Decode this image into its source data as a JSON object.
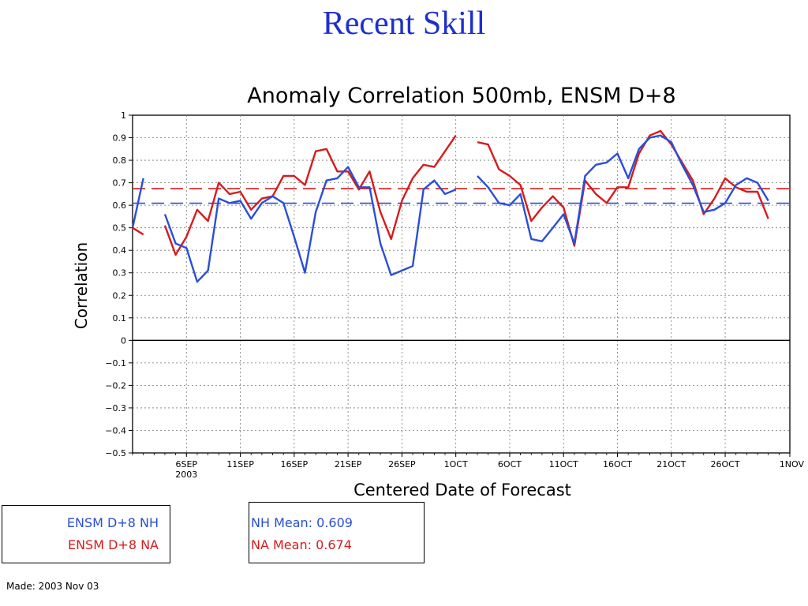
{
  "slide": {
    "title": "Recent Skill"
  },
  "footer": {
    "made": "Made: 2003 Nov 03"
  },
  "legend": {
    "series": [
      {
        "label": "ENSM D+8 NH",
        "color": "#2a4fd6"
      },
      {
        "label": "ENSM D+8 NA",
        "color": "#d61c1c"
      }
    ],
    "means": [
      {
        "label": "NH Mean: 0.609",
        "color": "#2a4fd6"
      },
      {
        "label": "NA Mean: 0.674",
        "color": "#d61c1c"
      }
    ]
  },
  "chart_data": {
    "type": "line",
    "title": "Anomaly Correlation 500mb, ENSM D+8",
    "xlabel": "Centered Date of Forecast",
    "ylabel": "Correlation",
    "x_start": "2003-09-01",
    "x_end": "2003-11-01",
    "xlim": [
      "2003-09-01",
      "2003-11-01"
    ],
    "ylim": [
      -0.5,
      1.0
    ],
    "yticks": [
      -0.5,
      -0.4,
      -0.3,
      -0.2,
      -0.1,
      0,
      0.1,
      0.2,
      0.3,
      0.4,
      0.5,
      0.6,
      0.7,
      0.8,
      0.9,
      1
    ],
    "ytick_labels": [
      "−0.5",
      "−0.4",
      "−0.3",
      "−0.2",
      "−0.1",
      "0",
      "0.1",
      "0.2",
      "0.3",
      "0.4",
      "0.5",
      "0.6",
      "0.7",
      "0.8",
      "0.9",
      "1"
    ],
    "xticks": [
      {
        "date": "2003-09-06",
        "label": "6SEP",
        "sublabel": "2003"
      },
      {
        "date": "2003-09-11",
        "label": "11SEP"
      },
      {
        "date": "2003-09-16",
        "label": "16SEP"
      },
      {
        "date": "2003-09-21",
        "label": "21SEP"
      },
      {
        "date": "2003-09-26",
        "label": "26SEP"
      },
      {
        "date": "2003-10-01",
        "label": "1OCT"
      },
      {
        "date": "2003-10-06",
        "label": "6OCT"
      },
      {
        "date": "2003-10-11",
        "label": "11OCT"
      },
      {
        "date": "2003-10-16",
        "label": "16OCT"
      },
      {
        "date": "2003-10-21",
        "label": "21OCT"
      },
      {
        "date": "2003-10-26",
        "label": "26OCT"
      },
      {
        "date": "2003-11-01",
        "label": "1NOV"
      }
    ],
    "grid": true,
    "zero_line": true,
    "series": [
      {
        "name": "ENSM D+8 NH",
        "color": "#2a4fd6",
        "mean": 0.609,
        "segments": [
          [
            [
              "2003-09-01",
              0.5
            ],
            [
              "2003-09-02",
              0.72
            ]
          ],
          [
            [
              "2003-09-04",
              0.56
            ],
            [
              "2003-09-05",
              0.43
            ],
            [
              "2003-09-06",
              0.41
            ],
            [
              "2003-09-07",
              0.26
            ],
            [
              "2003-09-08",
              0.31
            ],
            [
              "2003-09-09",
              0.63
            ],
            [
              "2003-09-10",
              0.61
            ],
            [
              "2003-09-11",
              0.62
            ],
            [
              "2003-09-12",
              0.54
            ],
            [
              "2003-09-13",
              0.61
            ],
            [
              "2003-09-14",
              0.64
            ],
            [
              "2003-09-15",
              0.61
            ],
            [
              "2003-09-16",
              0.46
            ],
            [
              "2003-09-17",
              0.3
            ],
            [
              "2003-09-18",
              0.57
            ],
            [
              "2003-09-19",
              0.71
            ],
            [
              "2003-09-20",
              0.72
            ],
            [
              "2003-09-21",
              0.77
            ],
            [
              "2003-09-22",
              0.68
            ],
            [
              "2003-09-23",
              0.68
            ],
            [
              "2003-09-24",
              0.43
            ],
            [
              "2003-09-25",
              0.29
            ],
            [
              "2003-09-26",
              0.31
            ],
            [
              "2003-09-27",
              0.33
            ],
            [
              "2003-09-28",
              0.67
            ],
            [
              "2003-09-29",
              0.71
            ],
            [
              "2003-09-30",
              0.65
            ],
            [
              "2003-10-01",
              0.67
            ]
          ],
          [
            [
              "2003-10-03",
              0.73
            ],
            [
              "2003-10-04",
              0.68
            ],
            [
              "2003-10-05",
              0.61
            ],
            [
              "2003-10-06",
              0.6
            ],
            [
              "2003-10-07",
              0.65
            ],
            [
              "2003-10-08",
              0.45
            ],
            [
              "2003-10-09",
              0.44
            ],
            [
              "2003-10-10",
              0.5
            ],
            [
              "2003-10-11",
              0.56
            ],
            [
              "2003-10-12",
              0.43
            ],
            [
              "2003-10-13",
              0.73
            ],
            [
              "2003-10-14",
              0.78
            ],
            [
              "2003-10-15",
              0.79
            ],
            [
              "2003-10-16",
              0.83
            ],
            [
              "2003-10-17",
              0.72
            ],
            [
              "2003-10-18",
              0.85
            ],
            [
              "2003-10-19",
              0.9
            ],
            [
              "2003-10-20",
              0.91
            ],
            [
              "2003-10-21",
              0.88
            ],
            [
              "2003-10-22",
              0.78
            ],
            [
              "2003-10-23",
              0.69
            ],
            [
              "2003-10-24",
              0.57
            ],
            [
              "2003-10-25",
              0.58
            ],
            [
              "2003-10-26",
              0.61
            ],
            [
              "2003-10-27",
              0.69
            ],
            [
              "2003-10-28",
              0.72
            ],
            [
              "2003-10-29",
              0.7
            ],
            [
              "2003-10-30",
              0.62
            ]
          ]
        ]
      },
      {
        "name": "ENSM D+8 NA",
        "color": "#d61c1c",
        "mean": 0.674,
        "segments": [
          [
            [
              "2003-09-01",
              0.5
            ],
            [
              "2003-09-02",
              0.47
            ]
          ],
          [
            [
              "2003-09-04",
              0.51
            ],
            [
              "2003-09-05",
              0.38
            ],
            [
              "2003-09-06",
              0.46
            ],
            [
              "2003-09-07",
              0.58
            ],
            [
              "2003-09-08",
              0.53
            ],
            [
              "2003-09-09",
              0.7
            ],
            [
              "2003-09-10",
              0.65
            ],
            [
              "2003-09-11",
              0.66
            ],
            [
              "2003-09-12",
              0.58
            ],
            [
              "2003-09-13",
              0.63
            ],
            [
              "2003-09-14",
              0.64
            ],
            [
              "2003-09-15",
              0.73
            ],
            [
              "2003-09-16",
              0.73
            ],
            [
              "2003-09-17",
              0.69
            ],
            [
              "2003-09-18",
              0.84
            ],
            [
              "2003-09-19",
              0.85
            ],
            [
              "2003-09-20",
              0.75
            ],
            [
              "2003-09-21",
              0.75
            ],
            [
              "2003-09-22",
              0.67
            ],
            [
              "2003-09-23",
              0.75
            ],
            [
              "2003-09-24",
              0.57
            ],
            [
              "2003-09-25",
              0.45
            ],
            [
              "2003-09-26",
              0.62
            ],
            [
              "2003-09-27",
              0.72
            ],
            [
              "2003-09-28",
              0.78
            ],
            [
              "2003-09-29",
              0.77
            ],
            [
              "2003-09-30",
              0.84
            ],
            [
              "2003-10-01",
              0.91
            ]
          ],
          [
            [
              "2003-10-03",
              0.88
            ],
            [
              "2003-10-04",
              0.87
            ],
            [
              "2003-10-05",
              0.76
            ],
            [
              "2003-10-06",
              0.73
            ],
            [
              "2003-10-07",
              0.69
            ],
            [
              "2003-10-08",
              0.53
            ],
            [
              "2003-10-09",
              0.59
            ],
            [
              "2003-10-10",
              0.64
            ],
            [
              "2003-10-11",
              0.59
            ],
            [
              "2003-10-12",
              0.42
            ],
            [
              "2003-10-13",
              0.71
            ],
            [
              "2003-10-14",
              0.65
            ],
            [
              "2003-10-15",
              0.61
            ],
            [
              "2003-10-16",
              0.68
            ],
            [
              "2003-10-17",
              0.68
            ],
            [
              "2003-10-18",
              0.83
            ],
            [
              "2003-10-19",
              0.91
            ],
            [
              "2003-10-20",
              0.93
            ],
            [
              "2003-10-21",
              0.87
            ],
            [
              "2003-10-22",
              0.79
            ],
            [
              "2003-10-23",
              0.71
            ],
            [
              "2003-10-24",
              0.56
            ],
            [
              "2003-10-25",
              0.63
            ],
            [
              "2003-10-26",
              0.72
            ],
            [
              "2003-10-27",
              0.68
            ],
            [
              "2003-10-28",
              0.66
            ],
            [
              "2003-10-29",
              0.66
            ],
            [
              "2003-10-30",
              0.54
            ]
          ]
        ]
      }
    ]
  }
}
